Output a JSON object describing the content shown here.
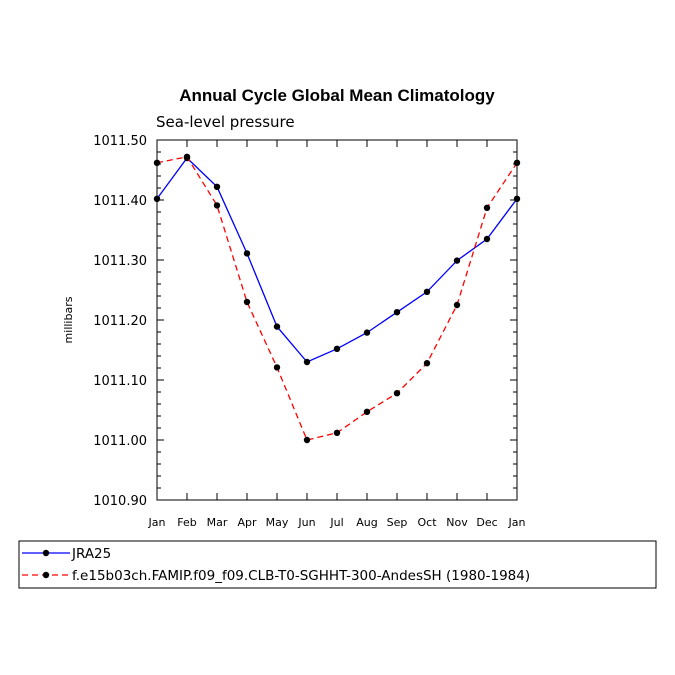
{
  "chart_data": {
    "type": "line",
    "title": "Annual Cycle Global Mean Climatology",
    "subtitle": "Sea-level pressure",
    "xlabel": "",
    "ylabel": "millibars",
    "categories": [
      "Jan",
      "Feb",
      "Mar",
      "Apr",
      "May",
      "Jun",
      "Jul",
      "Aug",
      "Sep",
      "Oct",
      "Nov",
      "Dec",
      "Jan"
    ],
    "ylim": [
      1010.9,
      1011.5
    ],
    "yticks": [
      "1011.50",
      "1011.40",
      "1011.30",
      "1011.20",
      "1011.10",
      "1011.00",
      "1010.90"
    ],
    "ytick_values": [
      1011.5,
      1011.4,
      1011.3,
      1011.2,
      1011.1,
      1011.0,
      1010.9
    ],
    "grid": false,
    "legend_position": "bottom",
    "series": [
      {
        "name": "JRA25",
        "color": "#0000ff",
        "dash": "solid",
        "values": [
          1011.402,
          1011.47,
          1011.422,
          1011.311,
          1011.189,
          1011.13,
          1011.152,
          1011.179,
          1011.213,
          1011.247,
          1011.299,
          1011.335,
          1011.402
        ]
      },
      {
        "name": "f.e15b03ch.FAMIP.f09_f09.CLB-T0-SGHHT-300-AndesSH (1980-1984)",
        "color": "#ff0000",
        "dash": "dashed",
        "values": [
          1011.462,
          1011.472,
          1011.391,
          1011.23,
          1011.121,
          1011.0,
          1011.012,
          1011.047,
          1011.078,
          1011.128,
          1011.225,
          1011.387,
          1011.462
        ]
      }
    ]
  }
}
